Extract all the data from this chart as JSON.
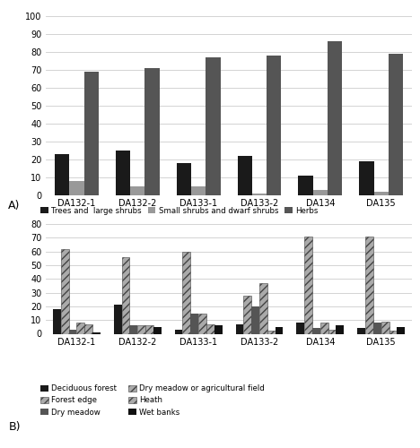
{
  "categories": [
    "DA132-1",
    "DA132-2",
    "DA133-1",
    "DA133-2",
    "DA134",
    "DA135"
  ],
  "chart_A": {
    "series_names": [
      "Trees and  large shrubs",
      "Small shrubs and dwarf shrubs",
      "Herbs"
    ],
    "series_values": [
      [
        23,
        25,
        18,
        22,
        11,
        19
      ],
      [
        8,
        5,
        5,
        1,
        3,
        2
      ],
      [
        69,
        71,
        77,
        78,
        86,
        79
      ]
    ],
    "colors": [
      "#1a1a1a",
      "#999999",
      "#555555"
    ],
    "ylim": [
      0,
      100
    ],
    "yticks": [
      0,
      10,
      20,
      30,
      40,
      50,
      60,
      70,
      80,
      90,
      100
    ]
  },
  "chart_B": {
    "series_names": [
      "Deciduous forest",
      "Forest edge",
      "Dry meadow",
      "Dry meadow or agricultural field",
      "Heath",
      "Wet banks"
    ],
    "series_values": [
      [
        18,
        21,
        3,
        7,
        8,
        4
      ],
      [
        62,
        56,
        60,
        28,
        71,
        71
      ],
      [
        3,
        6,
        15,
        20,
        4,
        8
      ],
      [
        8,
        6,
        15,
        37,
        8,
        9
      ],
      [
        7,
        6,
        7,
        2,
        3,
        2
      ],
      [
        1,
        5,
        6,
        5,
        6,
        5
      ]
    ],
    "colors": [
      "#1a1a1a",
      "#777777",
      "#555555",
      "#aaaaaa",
      "#cccccc",
      "#111111"
    ],
    "hatches": [
      "",
      "////",
      "",
      "////",
      "////",
      ""
    ],
    "ylim": [
      0,
      80
    ],
    "yticks": [
      0,
      10,
      20,
      30,
      40,
      50,
      60,
      70,
      80
    ]
  },
  "legend_A_labels": [
    "Trees and  large shrubs",
    "Small shrubs and dwarf shrubs",
    "Herbs"
  ],
  "legend_A_colors": [
    "#1a1a1a",
    "#999999",
    "#555555"
  ],
  "legend_B_labels": [
    "Deciduous forest",
    "Forest edge",
    "Dry meadow",
    "Dry meadow or agricultural field",
    "Heath",
    "Wet banks"
  ],
  "legend_B_colors": [
    "#1a1a1a",
    "#777777",
    "#555555",
    "#aaaaaa",
    "#cccccc",
    "#111111"
  ],
  "legend_B_hatches": [
    "",
    "////",
    "",
    "////",
    "////",
    ""
  ]
}
